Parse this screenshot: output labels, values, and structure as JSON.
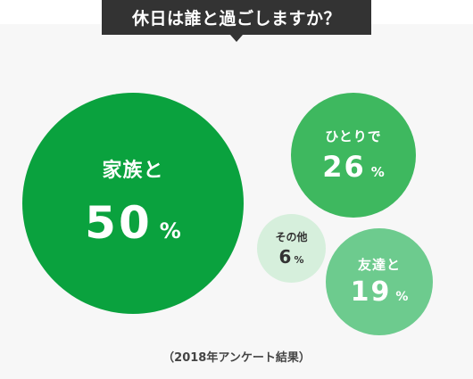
{
  "title": "休日は誰と過ごしますか？",
  "footnote": "（2018年アンケート結果）",
  "colors": {
    "family_bg": "#0aa23e",
    "family_text": "#ffffff",
    "alone_bg": "#3eb85f",
    "alone_text": "#ffffff",
    "friends_bg": "#6dcb8e",
    "friends_text": "#ffffff",
    "other_bg": "#d6efdc",
    "other_text": "#333333"
  },
  "chart_data": {
    "type": "bubble",
    "unit": "%",
    "series": [
      {
        "key": "family",
        "label": "家族と",
        "value": 50
      },
      {
        "key": "alone",
        "label": "ひとりで",
        "value": 26
      },
      {
        "key": "friends",
        "label": "友達と",
        "value": 19
      },
      {
        "key": "other",
        "label": "その他",
        "value": 6
      }
    ]
  }
}
